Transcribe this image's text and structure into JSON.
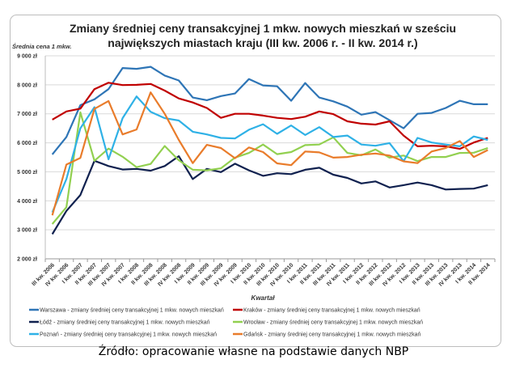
{
  "chart_data": {
    "type": "line",
    "title_line1": "Zmiany średniej ceny transakcyjnej 1 mkw. nowych mieszkań w sześciu",
    "title_line2": "największych miastach kraju  (III kw. 2006 r. - II kw. 2014 r.)",
    "ylabel": "Średnia cena 1 mkw.",
    "xlabel": "Kwartał",
    "ylim": [
      2000,
      9000
    ],
    "yticks": [
      2000,
      3000,
      4000,
      5000,
      6000,
      7000,
      8000,
      9000
    ],
    "ytick_labels": [
      "2 000 zł",
      "3 000 zł",
      "4 000 zł",
      "5 000 zł",
      "6 000 zł",
      "7 000 zł",
      "8 000 zł",
      "9 000 zł"
    ],
    "grid": "horizontal",
    "legend_placement": "bottom",
    "categories": [
      "III kw. 2006",
      "IV kw. 2006",
      "I kw. 2007",
      "II kw. 2007",
      "III kw. 2007",
      "IV kw. 2007",
      "I kw. 2008",
      "II kw. 2008",
      "III kw. 2008",
      "IV kw. 2008",
      "I kw. 2009",
      "II kw. 2009",
      "III kw. 2009",
      "IV kw. 2009",
      "I kw. 2010",
      "II kw. 2010",
      "III kw. 2010",
      "IV kw. 2010",
      "I kw. 2011",
      "II kw. 2011",
      "III kw. 2011",
      "IV kw. 2011",
      "I kw. 2012",
      "II kw. 2012",
      "III kw. 2012",
      "IV kw. 2012",
      "I kw. 2013",
      "II kw. 2013",
      "III kw. 2013",
      "IV kw. 2013",
      "I kw. 2014",
      "II kw. 2014"
    ],
    "series": [
      {
        "name": "Warszawa - zmiany średniej ceny transakcyjnej 1 mkw. nowych mieszkań",
        "color": "#2e75b6",
        "values": [
          5600,
          6200,
          7300,
          7500,
          7850,
          8580,
          8550,
          8620,
          8320,
          8150,
          7560,
          7470,
          7610,
          7700,
          8200,
          7980,
          7950,
          7450,
          8060,
          7560,
          7430,
          7250,
          6970,
          7060,
          6780,
          6500,
          7000,
          7030,
          7200,
          7450,
          7330,
          7330
        ]
      },
      {
        "name": "Kraków - zmiany średniej ceny transakcyjnej 1 mkw. nowych mieszkań",
        "color": "#c00000",
        "values": [
          6800,
          7080,
          7180,
          7850,
          8070,
          7990,
          8000,
          8030,
          7800,
          7530,
          7390,
          7200,
          6860,
          7000,
          7000,
          6940,
          6860,
          6820,
          6900,
          7080,
          6990,
          6740,
          6660,
          6630,
          6740,
          6250,
          5880,
          5900,
          5880,
          5790,
          6010,
          6170
        ]
      },
      {
        "name": "Łódź - zmiany średniej ceny transakcyjnej 1 mkw. nowych mieszkań",
        "color": "#10214f",
        "values": [
          2850,
          3650,
          4200,
          5380,
          5200,
          5080,
          5100,
          5040,
          5200,
          5540,
          4750,
          5100,
          4990,
          5280,
          5050,
          4860,
          4950,
          4920,
          5070,
          5140,
          4900,
          4790,
          4600,
          4670,
          4460,
          4540,
          4630,
          4540,
          4390,
          4410,
          4420,
          4540
        ]
      },
      {
        "name": "Wrocław - zmiany średniej ceny transakcyjnej 1 mkw. nowych mieszkań",
        "color": "#92d050",
        "values": [
          3200,
          3780,
          7050,
          5380,
          5800,
          5520,
          5160,
          5270,
          5890,
          5400,
          5070,
          5050,
          5120,
          5490,
          5650,
          5940,
          5610,
          5680,
          5920,
          5940,
          6190,
          5650,
          5570,
          5770,
          5490,
          5560,
          5370,
          5510,
          5510,
          5650,
          5660,
          5820
        ]
      },
      {
        "name": "Poznań - zmiany średniej ceny transakcyjnej 1 mkw. nowych mieszkań",
        "color": "#2fb1e6",
        "values": [
          3600,
          4750,
          6500,
          7230,
          5430,
          6850,
          7600,
          7070,
          6850,
          6770,
          6380,
          6290,
          6170,
          6150,
          6450,
          6640,
          6310,
          6600,
          6270,
          6540,
          6200,
          6250,
          5940,
          5900,
          5990,
          5370,
          6170,
          6010,
          5940,
          5880,
          6220,
          6100
        ]
      },
      {
        "name": "Gdańsk - zmiany średniej ceny transakcyjnej 1 mkw. nowych mieszkań",
        "color": "#e97c2b",
        "values": [
          3500,
          5250,
          5480,
          7170,
          7440,
          6290,
          6460,
          7740,
          7000,
          6100,
          5300,
          5930,
          5820,
          5470,
          5840,
          5680,
          5290,
          5230,
          5700,
          5670,
          5490,
          5510,
          5590,
          5630,
          5560,
          5360,
          5300,
          5700,
          5820,
          6060,
          5510,
          5750
        ]
      }
    ]
  },
  "source": "Źródło: opracowanie własne na podstawie danych NBP"
}
